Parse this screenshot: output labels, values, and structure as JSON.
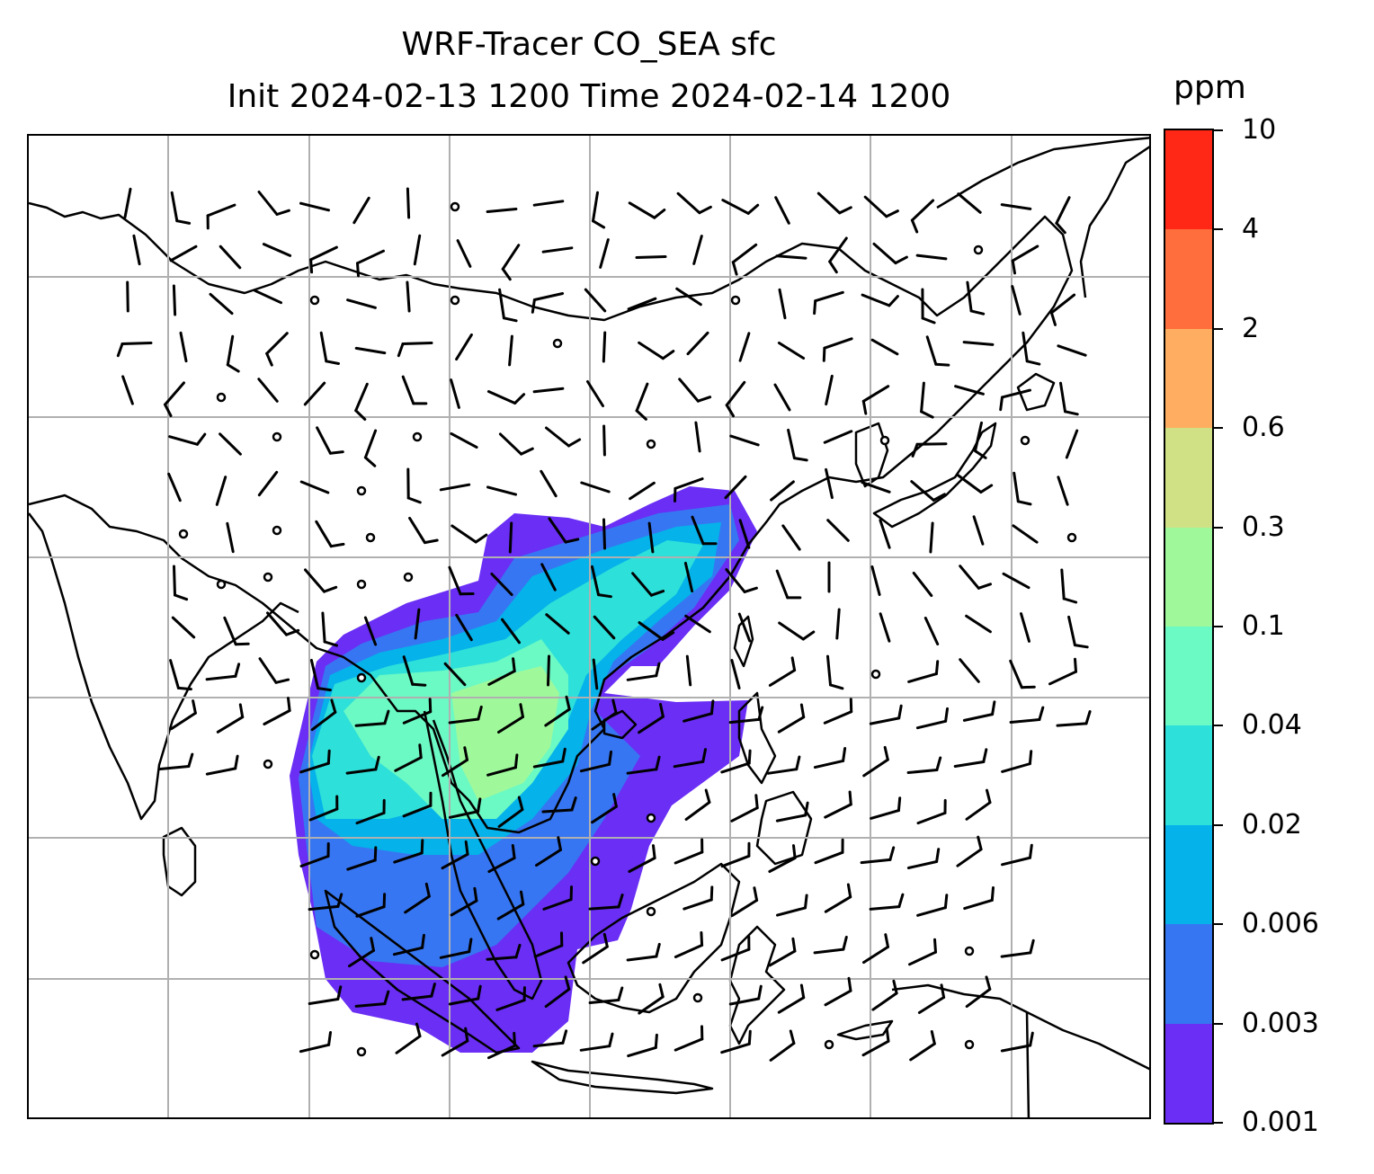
{
  "title": {
    "line1": "WRF-Tracer CO_SEA sfc",
    "line2": "Init 2024-02-13 1200 Time 2024-02-14 1200"
  },
  "colorbar": {
    "unit": "ppm",
    "levels": [
      "0.001",
      "0.003",
      "0.006",
      "0.02",
      "0.04",
      "0.1",
      "0.3",
      "0.6",
      "2",
      "4",
      "10"
    ],
    "colors": [
      "#6a2ef5",
      "#3776f2",
      "#05b2ea",
      "#2de0d9",
      "#6bf9c4",
      "#9ff99b",
      "#cfe184",
      "#ffae61",
      "#ff6e3c",
      "#ff2716"
    ]
  },
  "map": {
    "gridlines": true,
    "coastline_color": "#000000",
    "grid_color": "#b0b0b0",
    "field": "CO_SEA tracer concentration (filled contours)",
    "wind_barbs": true
  }
}
